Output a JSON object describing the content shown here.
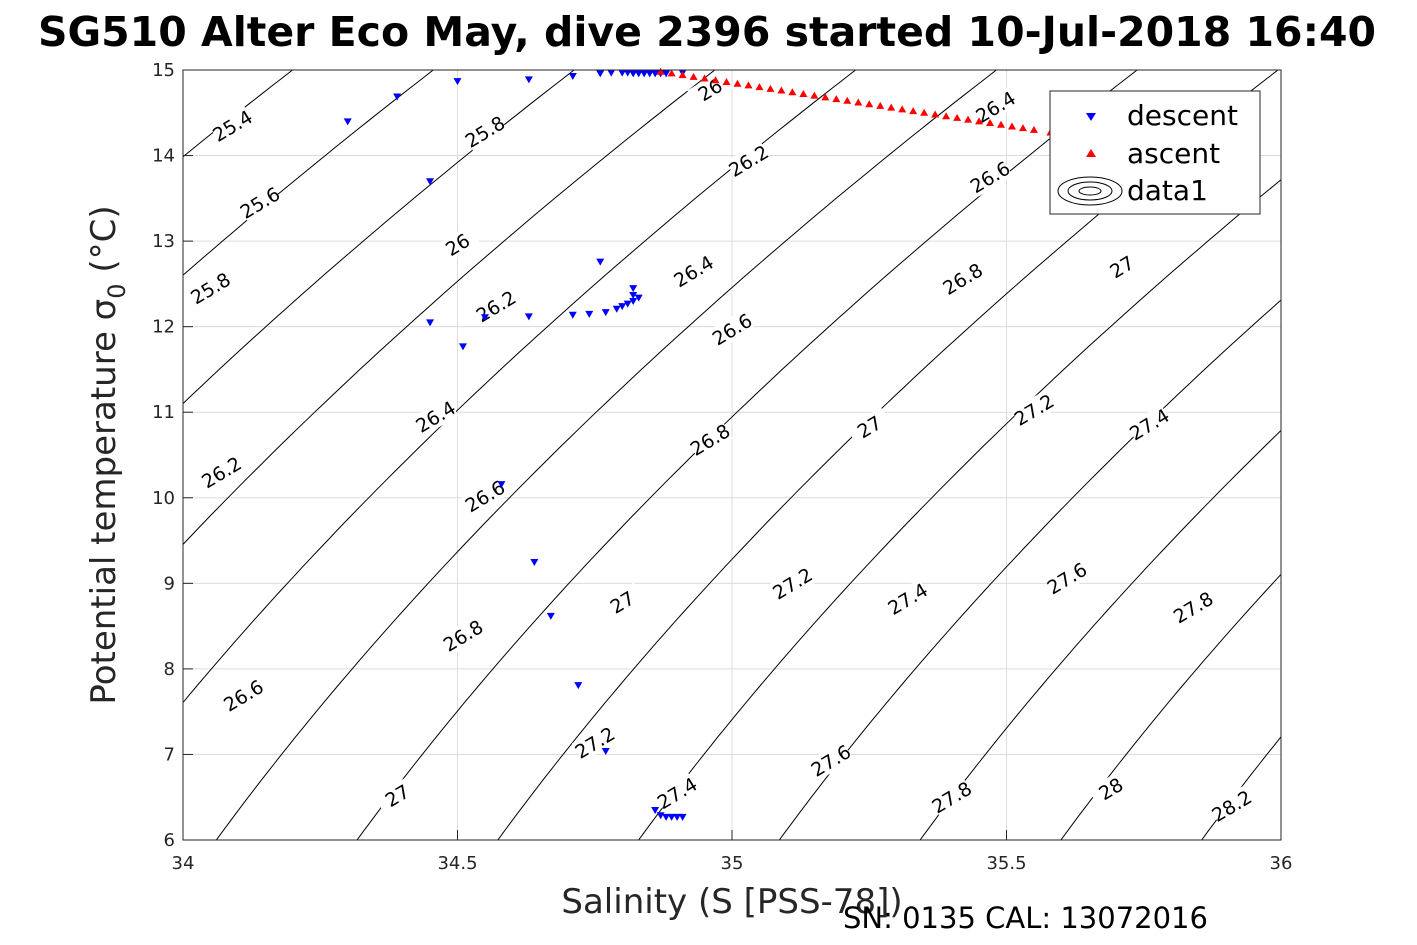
{
  "chart_data": {
    "type": "scatter",
    "title": "SG510 Alter Eco May, dive 2396 started 10-Jul-2018 16:40",
    "xlabel": "Salinity (S [PSS-78])",
    "ylabel": "Potential temperature σ",
    "ylabel_subscript": "0",
    "ylabel_unit": " (°C)",
    "xlim": [
      34,
      36
    ],
    "ylim": [
      6,
      15
    ],
    "x_ticks": [
      34,
      34.5,
      35,
      35.5,
      36
    ],
    "x_tick_labels": [
      "34",
      "34.5",
      "35",
      "35.5",
      "36"
    ],
    "y_ticks": [
      6,
      7,
      8,
      9,
      10,
      11,
      12,
      13,
      14,
      15
    ],
    "y_tick_labels": [
      "6",
      "7",
      "8",
      "9",
      "10",
      "11",
      "12",
      "13",
      "14",
      "15"
    ],
    "grid": true,
    "legend_position": "top-right",
    "series": [
      {
        "name": "descent",
        "marker": "triangle-down",
        "color": "#0000ff",
        "x": [
          34.3,
          34.39,
          34.5,
          34.63,
          34.71,
          34.76,
          34.78,
          34.8,
          34.81,
          34.82,
          34.83,
          34.84,
          34.85,
          34.86,
          34.87,
          34.88,
          34.91,
          34.45,
          34.76,
          34.82,
          34.82,
          34.83,
          34.82,
          34.81,
          34.8,
          34.79,
          34.77,
          34.74,
          34.71,
          34.63,
          34.55,
          34.45,
          34.51,
          34.58,
          34.64,
          34.67,
          34.72,
          34.77,
          34.86,
          34.87,
          34.88,
          34.89,
          34.9,
          34.91
        ],
        "y": [
          14.4,
          14.69,
          14.87,
          14.89,
          14.93,
          14.96,
          14.97,
          14.97,
          14.97,
          14.96,
          14.96,
          14.96,
          14.96,
          14.96,
          14.96,
          14.96,
          14.97,
          13.7,
          12.76,
          12.45,
          12.37,
          12.34,
          12.3,
          12.27,
          12.24,
          12.21,
          12.17,
          12.15,
          12.14,
          12.12,
          12.11,
          12.05,
          11.77,
          10.16,
          9.25,
          8.62,
          7.81,
          7.04,
          6.35,
          6.29,
          6.27,
          6.27,
          6.27,
          6.27
        ]
      },
      {
        "name": "ascent",
        "marker": "triangle-up",
        "color": "#ff0000",
        "x_range": [
          34.87,
          35.58
        ],
        "y_range": [
          14.98,
          14.27
        ],
        "x": [
          34.87,
          34.89,
          34.91,
          34.93,
          34.95,
          34.97,
          34.99,
          35.01,
          35.03,
          35.05,
          35.07,
          35.09,
          35.11,
          35.13,
          35.15,
          35.17,
          35.19,
          35.21,
          35.23,
          35.25,
          35.27,
          35.29,
          35.31,
          35.33,
          35.35,
          35.37,
          35.39,
          35.41,
          35.43,
          35.45,
          35.47,
          35.49,
          35.51,
          35.53,
          35.55,
          35.58
        ],
        "y": [
          14.98,
          14.96,
          14.94,
          14.92,
          14.9,
          14.88,
          14.86,
          14.84,
          14.82,
          14.8,
          14.78,
          14.76,
          14.74,
          14.72,
          14.7,
          14.68,
          14.66,
          14.64,
          14.62,
          14.6,
          14.58,
          14.56,
          14.54,
          14.52,
          14.5,
          14.48,
          14.46,
          14.44,
          14.42,
          14.4,
          14.38,
          14.36,
          14.34,
          14.32,
          14.3,
          14.27
        ]
      },
      {
        "name": "data1",
        "type": "contour",
        "color": "#000000",
        "note": "potential density σ0 isopycnals",
        "levels": [
          25.4,
          25.6,
          25.8,
          26.0,
          26.2,
          26.4,
          26.6,
          26.8,
          27.0,
          27.2,
          27.4,
          27.6,
          27.8,
          28.0,
          28.2
        ],
        "level_labels": [
          {
            "text": "25.4",
            "s": 34.09,
            "t": 14.35
          },
          {
            "text": "25.6",
            "s": 34.14,
            "t": 13.45
          },
          {
            "text": "25.8",
            "s": 34.05,
            "t": 12.45
          },
          {
            "text": "25.8",
            "s": 34.55,
            "t": 14.28
          },
          {
            "text": "26",
            "s": 34.5,
            "t": 12.96
          },
          {
            "text": "26",
            "s": 34.96,
            "t": 14.77
          },
          {
            "text": "26.2",
            "s": 34.07,
            "t": 10.3
          },
          {
            "text": "26.2",
            "s": 34.57,
            "t": 12.24
          },
          {
            "text": "26.2",
            "s": 35.03,
            "t": 13.94
          },
          {
            "text": "26.4",
            "s": 34.46,
            "t": 10.95
          },
          {
            "text": "26.4",
            "s": 34.93,
            "t": 12.65
          },
          {
            "text": "26.4",
            "s": 35.48,
            "t": 14.57
          },
          {
            "text": "26.6",
            "s": 34.11,
            "t": 7.69
          },
          {
            "text": "26.6",
            "s": 34.55,
            "t": 10.02
          },
          {
            "text": "26.6",
            "s": 35.0,
            "t": 11.97
          },
          {
            "text": "26.6",
            "s": 35.47,
            "t": 13.75
          },
          {
            "text": "26.8",
            "s": 34.51,
            "t": 8.39
          },
          {
            "text": "26.8",
            "s": 34.96,
            "t": 10.68
          },
          {
            "text": "26.8",
            "s": 35.42,
            "t": 12.56
          },
          {
            "text": "27",
            "s": 34.39,
            "t": 6.52
          },
          {
            "text": "27",
            "s": 34.8,
            "t": 8.78
          },
          {
            "text": "27",
            "s": 35.25,
            "t": 10.83
          },
          {
            "text": "27",
            "s": 35.71,
            "t": 12.7
          },
          {
            "text": "27.2",
            "s": 34.75,
            "t": 7.14
          },
          {
            "text": "27.2",
            "s": 35.11,
            "t": 9.0
          },
          {
            "text": "27.2",
            "s": 35.55,
            "t": 11.03
          },
          {
            "text": "27.4",
            "s": 34.9,
            "t": 6.55
          },
          {
            "text": "27.4",
            "s": 35.32,
            "t": 8.82
          },
          {
            "text": "27.4",
            "s": 35.76,
            "t": 10.86
          },
          {
            "text": "27.6",
            "s": 35.18,
            "t": 6.93
          },
          {
            "text": "27.6",
            "s": 35.61,
            "t": 9.06
          },
          {
            "text": "27.8",
            "s": 35.4,
            "t": 6.5
          },
          {
            "text": "27.8",
            "s": 35.84,
            "t": 8.72
          },
          {
            "text": "28",
            "s": 35.69,
            "t": 6.6
          },
          {
            "text": "28.2",
            "s": 35.91,
            "t": 6.4
          }
        ]
      }
    ],
    "footer": "SN: 0135  CAL: 13072016"
  },
  "colors": {
    "descent": "#0000ff",
    "ascent": "#ff0000",
    "contour": "#000000",
    "grid": "#dcdcdc",
    "axis": "#262626"
  }
}
